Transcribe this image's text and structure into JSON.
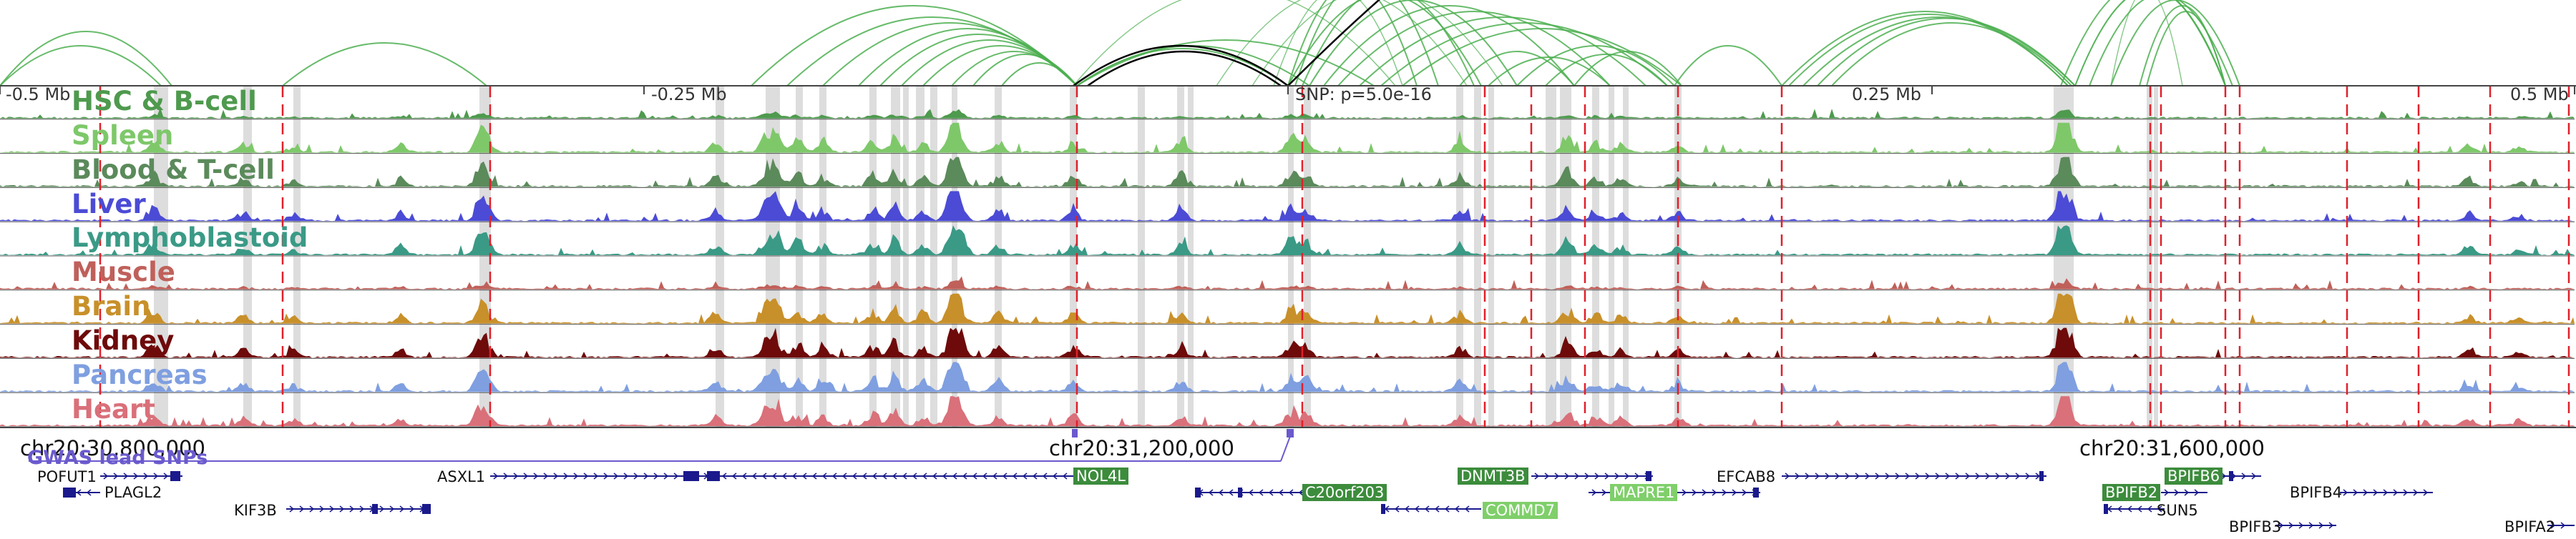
{
  "ruler": {
    "labels": [
      "-0.5 Mb",
      "-0.25 Mb",
      "SNP: p=5.0e-16",
      "0.25 Mb",
      "0.5 Mb"
    ]
  },
  "tracks": [
    {
      "name": "HSC & B-cell",
      "color": "#4e9a4e"
    },
    {
      "name": "Spleen",
      "color": "#7ec86a"
    },
    {
      "name": "Blood & T-cell",
      "color": "#5b8a5b"
    },
    {
      "name": "Liver",
      "color": "#4b4bd6"
    },
    {
      "name": "Lymphoblastoid",
      "color": "#3a9a86"
    },
    {
      "name": "Muscle",
      "color": "#c0605a"
    },
    {
      "name": "Brain",
      "color": "#c8902a"
    },
    {
      "name": "Kidney",
      "color": "#6e0a0a"
    },
    {
      "name": "Pancreas",
      "color": "#7f9fe0"
    },
    {
      "name": "Heart",
      "color": "#d9707a"
    }
  ],
  "coordinates": [
    "chr20:30,800,000",
    "chr20:31,200,000",
    "chr20:31,600,000"
  ],
  "gwas": {
    "label": "GWAS lead SNPs"
  },
  "genes": [
    {
      "name": "POFUT1",
      "boxed": false
    },
    {
      "name": "PLAGL2",
      "boxed": false
    },
    {
      "name": "KIF3B",
      "boxed": false
    },
    {
      "name": "ASXL1",
      "boxed": false
    },
    {
      "name": "NOL4L",
      "boxed": true
    },
    {
      "name": "C20orf203",
      "boxed": true
    },
    {
      "name": "DNMT3B",
      "boxed": true
    },
    {
      "name": "MAPRE1",
      "boxed": true
    },
    {
      "name": "COMMD7",
      "boxed": true
    },
    {
      "name": "EFCAB8",
      "boxed": false
    },
    {
      "name": "BPIFB6",
      "boxed": true
    },
    {
      "name": "BPIFB2",
      "boxed": true
    },
    {
      "name": "SUN5",
      "boxed": false
    },
    {
      "name": "BPIFB4",
      "boxed": false
    },
    {
      "name": "BPIFB3",
      "boxed": false
    },
    {
      "name": "BPIFA2",
      "boxed": false
    }
  ],
  "colors": {
    "loop": "#4caf50",
    "lead_loop": "#000000",
    "highlight": "#dddddd",
    "boundary": "#e0202a",
    "gene": "#1a1a8c",
    "gwas": "#6a5acd",
    "gene_box_dark": "#3c8c3c",
    "gene_box_light": "#7fcf6a"
  }
}
